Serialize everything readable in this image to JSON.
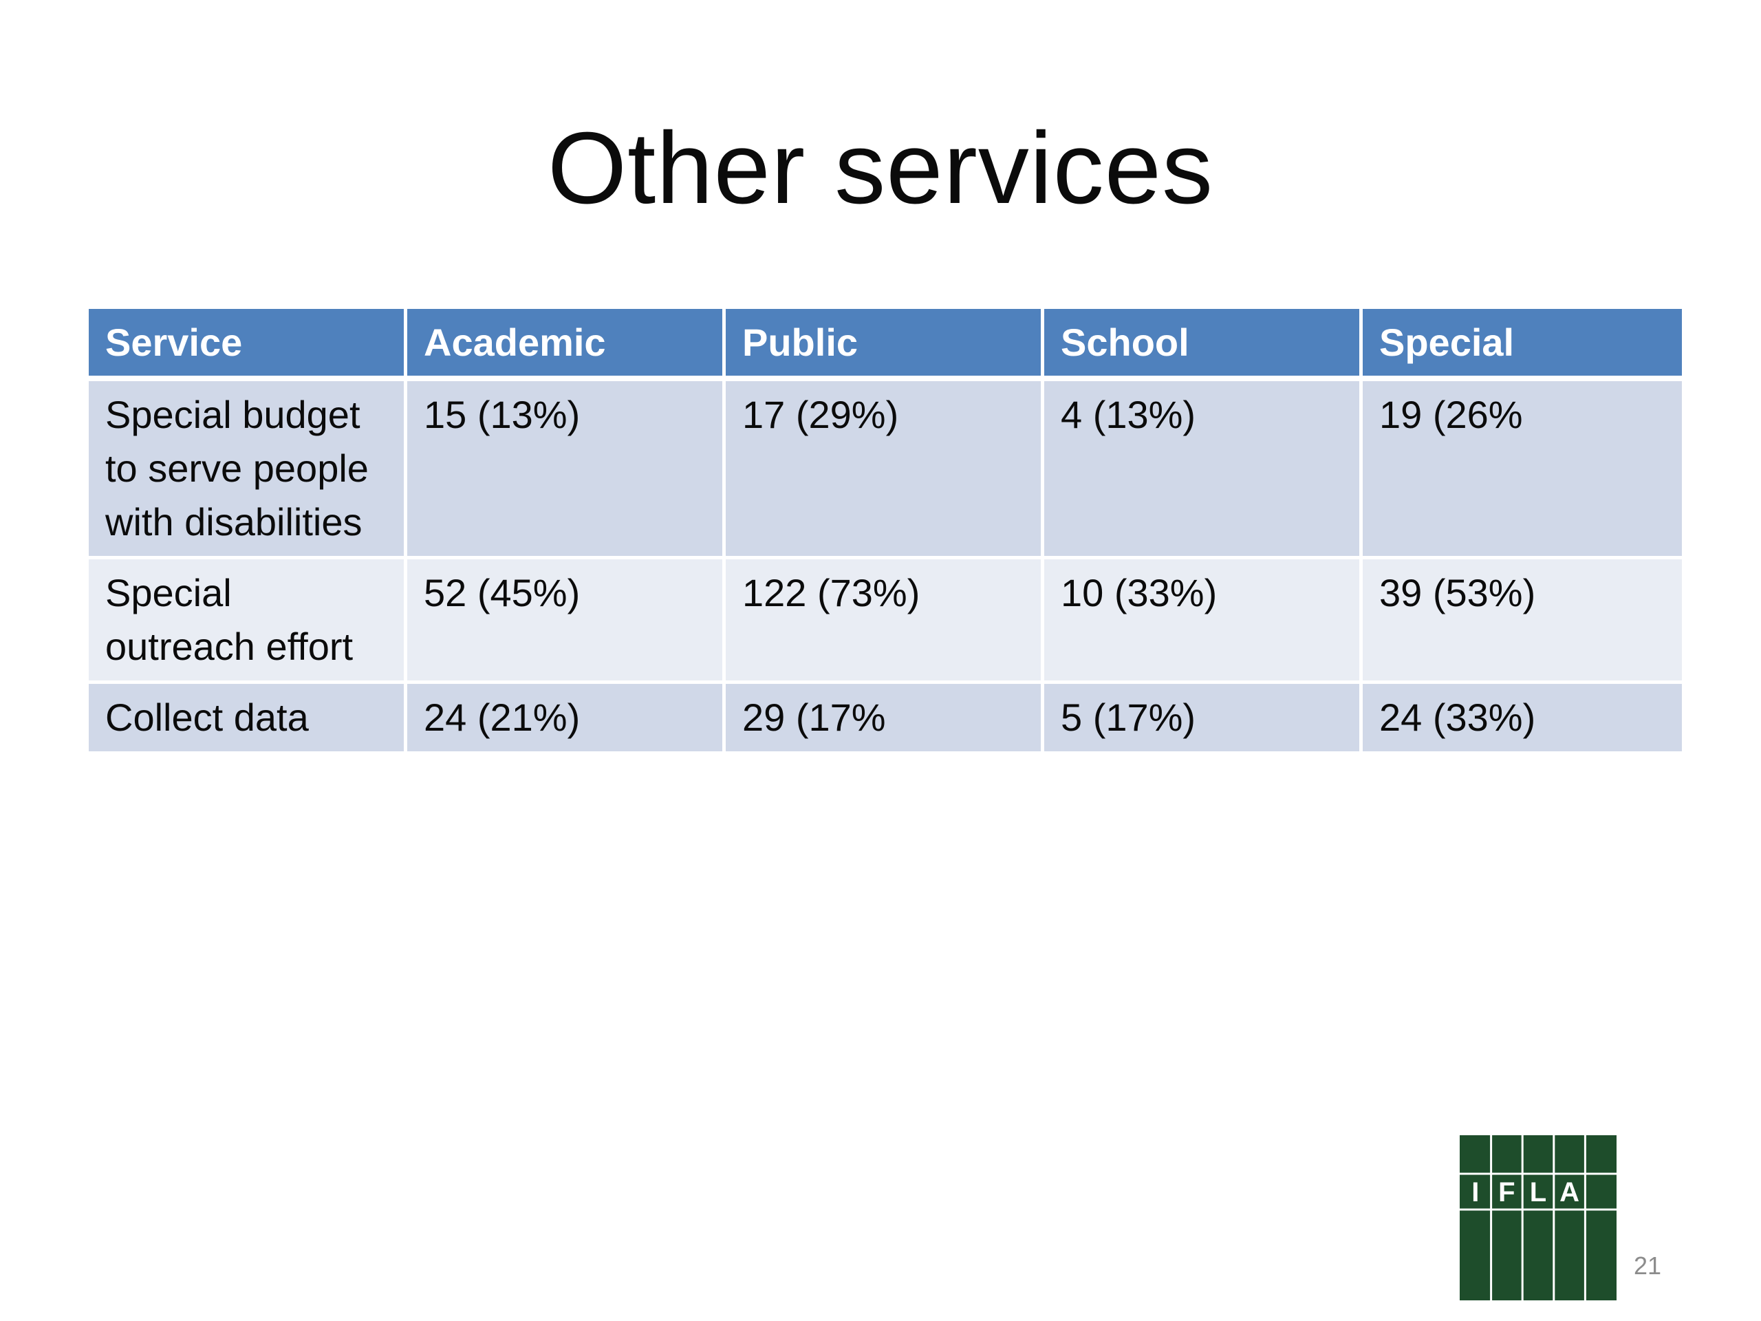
{
  "slide": {
    "title": "Other services",
    "page_number": "21"
  },
  "table": {
    "headers": [
      "Service",
      "Academic",
      "Public",
      "School",
      "Special"
    ],
    "rows": [
      [
        "Special budget\nto serve people\nwith disabilities",
        "15  (13%)",
        "17  (29%)",
        "4  (13%)",
        "19  (26%"
      ],
      [
        "Special\noutreach effort",
        "52  (45%)",
        "122  (73%)",
        "10  (33%)",
        "39  (53%)"
      ],
      [
        "Collect data",
        "24  (21%)",
        "29  (17%",
        "5  (17%)",
        "24  (33%)"
      ]
    ]
  },
  "logo": {
    "letters": [
      "I",
      "F",
      "L",
      "A"
    ],
    "color": "#1e4d2b"
  },
  "colors": {
    "header_bg": "#4f81bd",
    "row_odd_bg": "#d0d8e8",
    "row_even_bg": "#e9edf4"
  }
}
